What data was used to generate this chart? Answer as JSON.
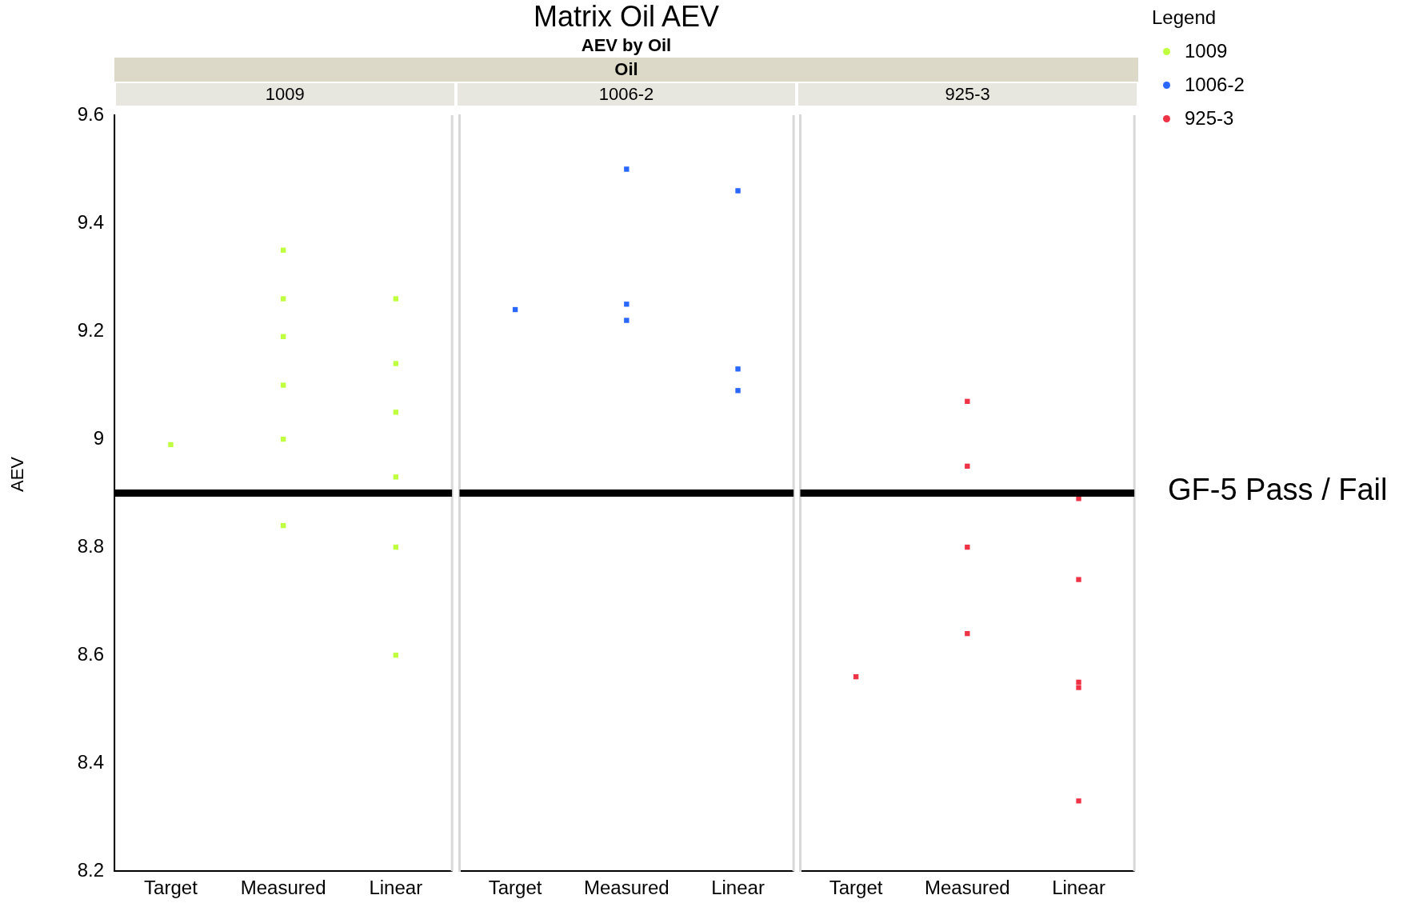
{
  "chart_data": [
    {
      "type": "scatter",
      "annotations": [
        "1009"
      ],
      "ylabel": "AEV",
      "legend_title": "Legend",
      "legend": "top right",
      "marker": "square",
      "grid": false,
      "categories": [
        "Target",
        "Measured",
        "Linear"
      ],
      "ylim": [
        8.2,
        9.6
      ],
      "yticks": [
        8.2,
        8.4,
        8.6,
        8.8,
        9,
        9.2,
        9.4,
        9.6
      ],
      "ref_lines": [
        {
          "axis": "y",
          "value": 8.9
        }
      ],
      "series": [
        {
          "name": "1009",
          "color": "#bfff3f",
          "x": [
            "Target",
            "Measured",
            "Measured",
            "Measured",
            "Measured",
            "Measured",
            "Measured",
            "Linear",
            "Linear",
            "Linear",
            "Linear",
            "Linear",
            "Linear"
          ],
          "values": [
            8.99,
            9.35,
            9.26,
            9.19,
            9.1,
            9,
            8.84,
            9.26,
            9.14,
            9.05,
            8.93,
            8.8,
            8.6
          ]
        }
      ]
    },
    {
      "type": "scatter",
      "title": "Matrix Oil AEV",
      "subtitle": "AEV by Oil",
      "annotations": [
        "Oil",
        "1006-2"
      ],
      "legend": "top right",
      "marker": "square",
      "grid": false,
      "tick_labels": "x",
      "categories": [
        "Target",
        "Measured",
        "Linear"
      ],
      "ylim": [
        8.2,
        9.6
      ],
      "yticks": [
        8.2,
        8.4,
        8.6,
        8.8,
        9,
        9.2,
        9.4,
        9.6
      ],
      "ref_lines": [
        {
          "axis": "y",
          "value": 8.9
        }
      ],
      "series": [
        {
          "name": "1006-2",
          "color": "#2a67ff",
          "x": [
            "Target",
            "Measured",
            "Measured",
            "Measured",
            "Linear",
            "Linear",
            "Linear"
          ],
          "values": [
            9.24,
            9.5,
            9.25,
            9.22,
            9.46,
            9.13,
            9.09
          ]
        }
      ]
    },
    {
      "type": "scatter",
      "annotations": [
        "925-3"
      ],
      "legend": "top right",
      "marker": "square",
      "grid": false,
      "tick_labels": "x",
      "categories": [
        "Target",
        "Measured",
        "Linear"
      ],
      "ylim": [
        8.2,
        9.6
      ],
      "yticks": [
        8.2,
        8.4,
        8.6,
        8.8,
        9,
        9.2,
        9.4,
        9.6
      ],
      "ref_lines": [
        {
          "axis": "y",
          "value": 8.9,
          "label": "GF-5 Pass / Fail"
        }
      ],
      "series": [
        {
          "name": "925-3",
          "color": "#ef3347",
          "x": [
            "Target",
            "Measured",
            "Measured",
            "Measured",
            "Measured",
            "Linear",
            "Linear",
            "Linear",
            "Linear",
            "Linear"
          ],
          "values": [
            8.56,
            9.07,
            8.95,
            8.8,
            8.64,
            8.89,
            8.74,
            8.55,
            8.54,
            8.33
          ]
        }
      ]
    }
  ]
}
